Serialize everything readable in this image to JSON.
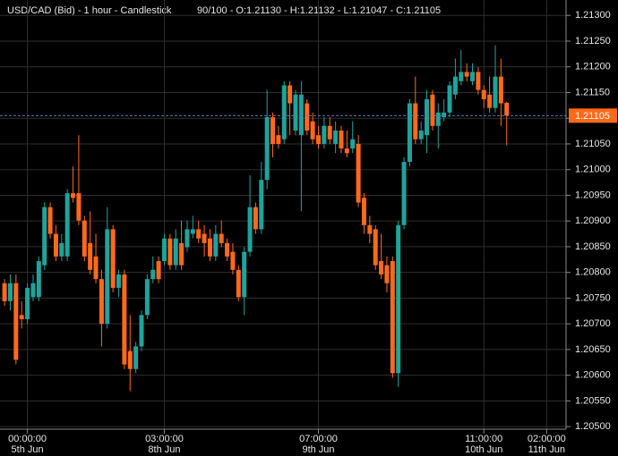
{
  "chart_data": {
    "type": "candlestick",
    "title": "USD/CAD (Bid) - 1 hour - Candlestick",
    "subtitle": "90/100 - O:1.21130 - H:1.21132 - L:1.21047 - C:1.21105",
    "up_color": "#1fa39b",
    "down_color": "#ff6a1a",
    "grid": true,
    "xlim": [
      -0.8,
      98.4
    ],
    "xticks": [
      {
        "value": 4,
        "label": "00:00:00",
        "date": "5th Jun"
      },
      {
        "value": 28,
        "label": "03:00:00",
        "date": "8th Jun"
      },
      {
        "value": 55,
        "label": "07:00:00",
        "date": "9th Jun"
      },
      {
        "value": 84,
        "label": "11:00:00",
        "date": "10th Jun"
      },
      {
        "value": 95,
        "label": "02:00:00",
        "date": "11th Jun"
      }
    ],
    "ylim": [
      1.20495,
      1.2133
    ],
    "yticks": [
      {
        "value": 1.213,
        "label": "1.21300"
      },
      {
        "value": 1.2125,
        "label": "1.21250"
      },
      {
        "value": 1.212,
        "label": "1.21200"
      },
      {
        "value": 1.2115,
        "label": "1.21150"
      },
      {
        "value": 1.211,
        "label": "1.21100"
      },
      {
        "value": 1.2105,
        "label": "1.21050"
      },
      {
        "value": 1.21,
        "label": "1.21000"
      },
      {
        "value": 1.2095,
        "label": "1.20950"
      },
      {
        "value": 1.209,
        "label": "1.20900"
      },
      {
        "value": 1.2085,
        "label": "1.20850"
      },
      {
        "value": 1.208,
        "label": "1.20800"
      },
      {
        "value": 1.2075,
        "label": "1.20750"
      },
      {
        "value": 1.207,
        "label": "1.20700"
      },
      {
        "value": 1.2065,
        "label": "1.20650"
      },
      {
        "value": 1.206,
        "label": "1.20600"
      },
      {
        "value": 1.2055,
        "label": "1.20550"
      },
      {
        "value": 1.205,
        "label": "1.20500"
      }
    ],
    "series": [
      {
        "open": [
          1.20779,
          1.20744,
          1.20779,
          1.20717,
          1.20709,
          1.20752,
          1.20752,
          1.20814,
          1.20927,
          1.20875,
          1.20831,
          1.20831,
          1.20954,
          1.20954,
          1.20901,
          1.20857,
          1.20831,
          1.20787,
          1.207,
          1.20884,
          1.2077,
          1.20796,
          1.20647,
          1.20612,
          1.20656,
          1.20717,
          1.20787,
          1.20822,
          1.20822,
          1.20866,
          1.20814,
          1.20857,
          1.20849,
          1.20875,
          1.20884,
          1.20875,
          1.20866,
          1.20831,
          1.20875,
          1.20857,
          1.2084,
          1.20805,
          1.20752,
          1.2084,
          1.20927,
          1.20884,
          1.2098,
          1.21102,
          1.21067,
          1.21059,
          1.21164,
          1.21076,
          1.21067,
          1.21129,
          1.21094,
          1.21067,
          1.2105,
          1.21085,
          1.2105,
          1.21076,
          1.21041,
          1.21041,
          1.2105,
          1.20945,
          1.20892,
          1.20884,
          1.20822,
          1.20814,
          1.20822,
          1.20604,
          1.20892,
          1.21015,
          1.21129,
          1.21059,
          1.21067,
          1.21146,
          1.21085,
          1.21102,
          1.21111,
          1.21146,
          1.21172,
          1.2119,
          1.21172,
          1.2119,
          1.21155,
          1.21146,
          1.2112,
          1.21181,
          1.2113
        ],
        "high": [
          1.20787,
          1.20796,
          1.20796,
          1.20744,
          1.20779,
          1.20796,
          1.20831,
          1.20936,
          1.20936,
          1.20892,
          1.20875,
          1.20962,
          1.21006,
          1.21067,
          1.2091,
          1.20919,
          1.20875,
          1.20805,
          1.20927,
          1.20892,
          1.20805,
          1.20805,
          1.20717,
          1.20665,
          1.20726,
          1.20796,
          1.20831,
          1.20831,
          1.20875,
          1.20875,
          1.20884,
          1.20901,
          1.20901,
          1.2091,
          1.20901,
          1.20892,
          1.20884,
          1.20892,
          1.20901,
          1.20866,
          1.20857,
          1.20814,
          1.20849,
          1.20989,
          1.20936,
          1.21015,
          1.21155,
          1.21111,
          1.21085,
          1.21172,
          1.21172,
          1.21155,
          1.21172,
          1.21137,
          1.21111,
          1.21085,
          1.21102,
          1.21102,
          1.21094,
          1.21085,
          1.21076,
          1.21094,
          1.21067,
          1.20954,
          1.2091,
          1.20892,
          1.20875,
          1.20831,
          1.20831,
          1.20901,
          1.21024,
          1.21137,
          1.21181,
          1.21094,
          1.21155,
          1.21155,
          1.21129,
          1.21137,
          1.21172,
          1.21216,
          1.21233,
          1.21207,
          1.21207,
          1.21199,
          1.21164,
          1.21181,
          1.21242,
          1.21216,
          1.21132
        ],
        "low": [
          1.20735,
          1.20726,
          1.20621,
          1.20691,
          1.207,
          1.20744,
          1.20744,
          1.20805,
          1.20866,
          1.20822,
          1.20822,
          1.20822,
          1.20936,
          1.20892,
          1.20822,
          1.20796,
          1.20779,
          1.20656,
          1.20691,
          1.20761,
          1.20752,
          1.20612,
          1.20569,
          1.20604,
          1.20647,
          1.20709,
          1.20779,
          1.20779,
          1.20814,
          1.20805,
          1.20805,
          1.20805,
          1.2084,
          1.20866,
          1.20857,
          1.20831,
          1.20822,
          1.20822,
          1.20849,
          1.20822,
          1.20796,
          1.20744,
          1.20717,
          1.20831,
          1.20875,
          1.20875,
          1.20962,
          1.21024,
          1.21041,
          1.2105,
          1.21067,
          1.21067,
          1.20919,
          1.21067,
          1.2105,
          1.21041,
          1.21041,
          1.2105,
          1.21032,
          1.21032,
          1.21024,
          1.21032,
          1.20927,
          1.20875,
          1.20857,
          1.20805,
          1.20787,
          1.20761,
          1.20595,
          1.20577,
          1.20884,
          1.21006,
          1.2105,
          1.2105,
          1.21032,
          1.21076,
          1.21041,
          1.21094,
          1.21102,
          1.21137,
          1.21164,
          1.21172,
          1.21164,
          1.21146,
          1.2112,
          1.21111,
          1.21111,
          1.21085,
          1.21047
        ],
        "close": [
          1.20744,
          1.20779,
          1.2063,
          1.20709,
          1.2077,
          1.20779,
          1.20822,
          1.20927,
          1.20875,
          1.20831,
          1.20857,
          1.20954,
          1.20945,
          1.20901,
          1.20831,
          1.20805,
          1.20787,
          1.207,
          1.20884,
          1.2077,
          1.20796,
          1.20621,
          1.20612,
          1.20656,
          1.20717,
          1.20787,
          1.20805,
          1.20787,
          1.20866,
          1.20814,
          1.20866,
          1.20814,
          1.20884,
          1.20884,
          1.20866,
          1.20857,
          1.20831,
          1.20875,
          1.20857,
          1.20831,
          1.20805,
          1.20752,
          1.2084,
          1.20927,
          1.20884,
          1.2098,
          1.21102,
          1.2105,
          1.2105,
          1.21164,
          1.21129,
          1.21146,
          1.21146,
          1.21076,
          1.21059,
          1.2105,
          1.21085,
          1.21059,
          1.21076,
          1.21041,
          1.21032,
          1.21059,
          1.20936,
          1.20892,
          1.20875,
          1.20814,
          1.20796,
          1.20779,
          1.20604,
          1.20892,
          1.21015,
          1.21129,
          1.21059,
          1.21076,
          1.21137,
          1.21085,
          1.21111,
          1.21111,
          1.21164,
          1.21181,
          1.2119,
          1.21181,
          1.2119,
          1.21155,
          1.21137,
          1.2112,
          1.21181,
          1.21129,
          1.21105
        ]
      }
    ]
  }
}
